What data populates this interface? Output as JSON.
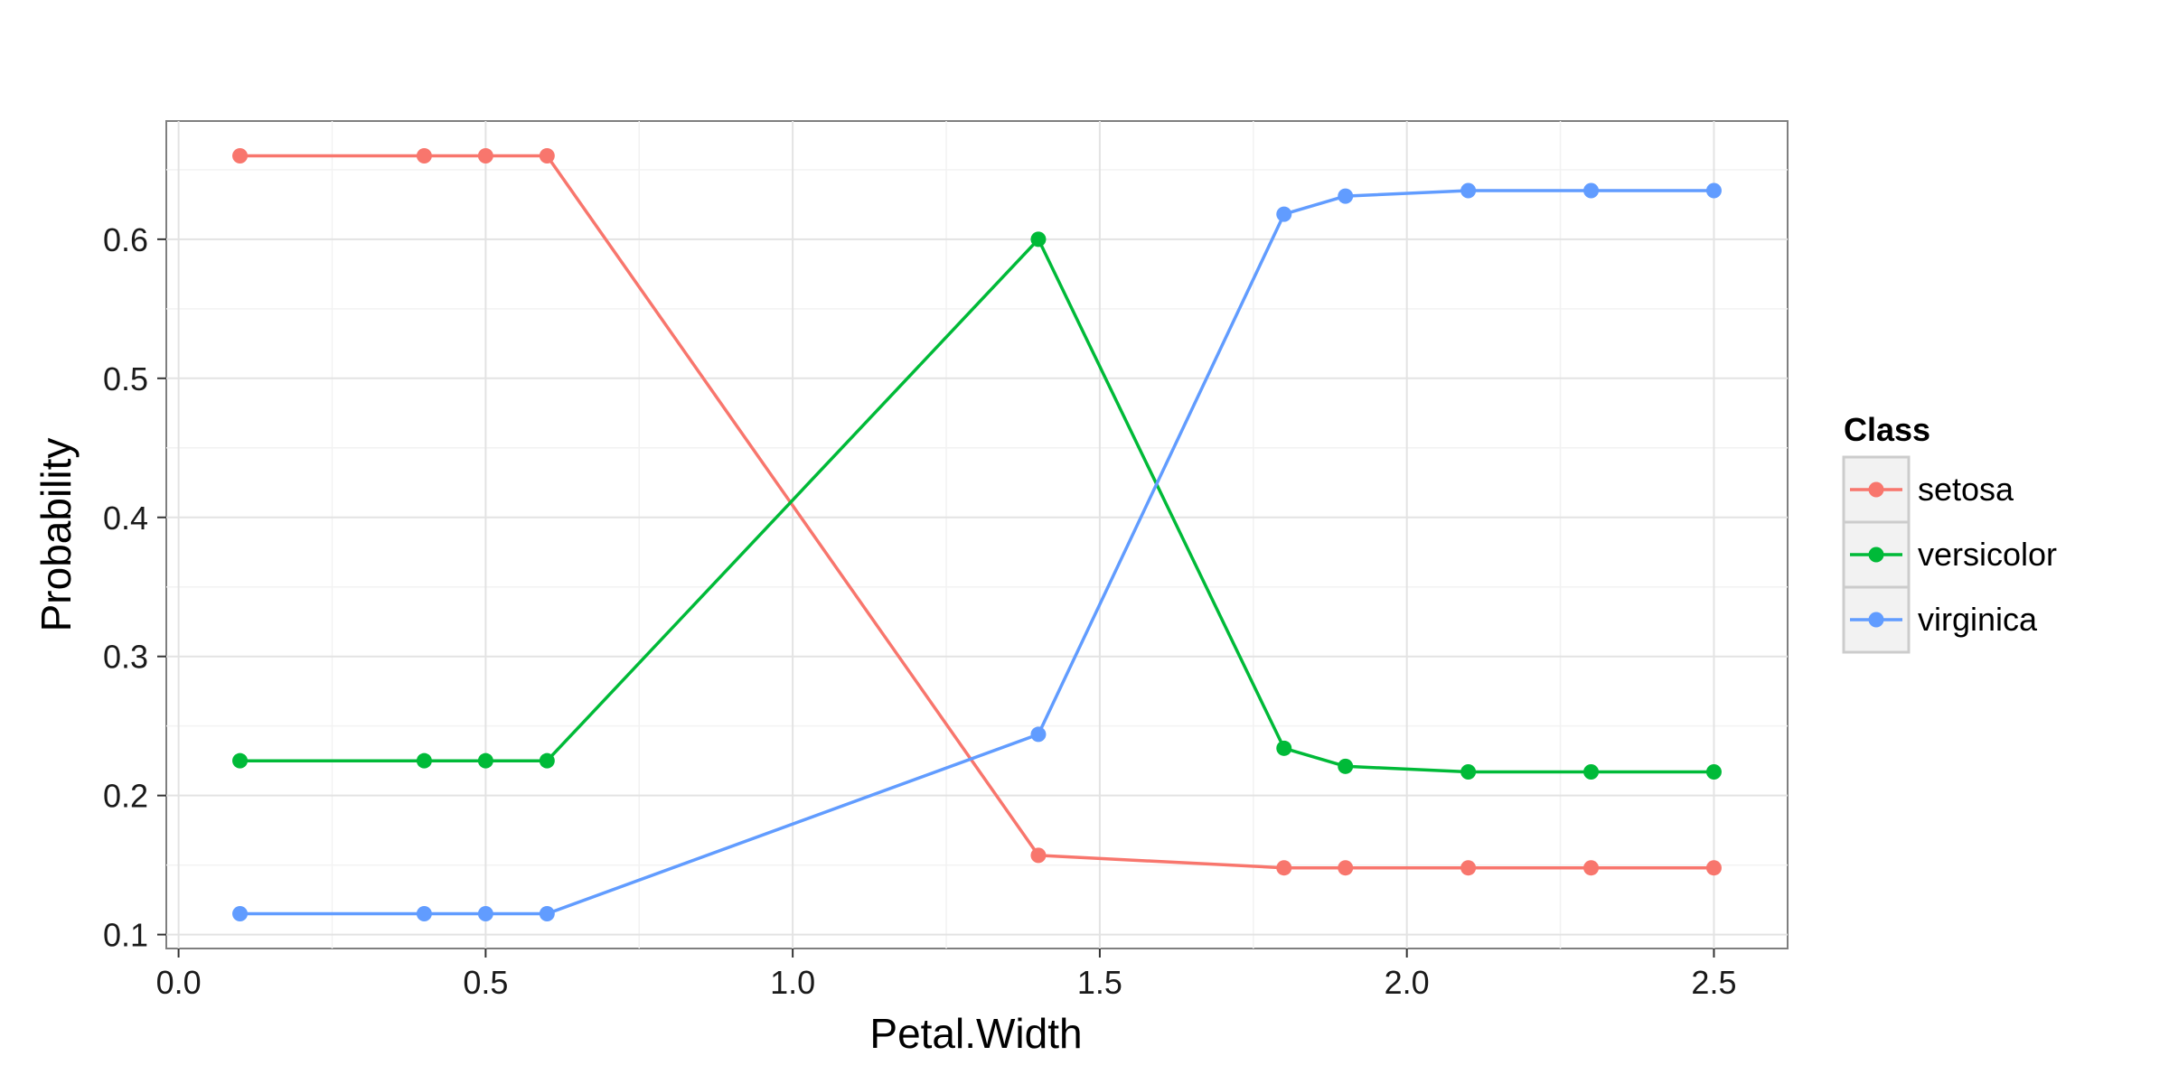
{
  "chart_data": {
    "type": "line",
    "xlabel": "Petal.Width",
    "ylabel": "Probability",
    "xlim": [
      -0.02,
      2.62
    ],
    "ylim": [
      0.09,
      0.685
    ],
    "x_ticks": [
      0.0,
      0.5,
      1.0,
      1.5,
      2.0,
      2.5
    ],
    "x_tick_labels": [
      "0.0",
      "0.5",
      "1.0",
      "1.5",
      "2.0",
      "2.5"
    ],
    "y_ticks": [
      0.1,
      0.2,
      0.3,
      0.4,
      0.5,
      0.6
    ],
    "y_tick_labels": [
      "0.1",
      "0.2",
      "0.3",
      "0.4",
      "0.5",
      "0.6"
    ],
    "grid": true,
    "legend": {
      "title": "Class",
      "position": "right"
    },
    "x": [
      0.1,
      0.4,
      0.5,
      0.6,
      1.4,
      1.8,
      1.9,
      2.1,
      2.3,
      2.5
    ],
    "series": [
      {
        "name": "setosa",
        "color": "#F8766D",
        "values": [
          0.66,
          0.66,
          0.66,
          0.66,
          0.157,
          0.148,
          0.148,
          0.148,
          0.148,
          0.148
        ]
      },
      {
        "name": "versicolor",
        "color": "#00BA38",
        "values": [
          0.225,
          0.225,
          0.225,
          0.225,
          0.6,
          0.234,
          0.221,
          0.217,
          0.217,
          0.217
        ]
      },
      {
        "name": "virginica",
        "color": "#619CFF",
        "values": [
          0.115,
          0.115,
          0.115,
          0.115,
          0.244,
          0.618,
          0.631,
          0.635,
          0.635,
          0.635
        ]
      }
    ]
  }
}
